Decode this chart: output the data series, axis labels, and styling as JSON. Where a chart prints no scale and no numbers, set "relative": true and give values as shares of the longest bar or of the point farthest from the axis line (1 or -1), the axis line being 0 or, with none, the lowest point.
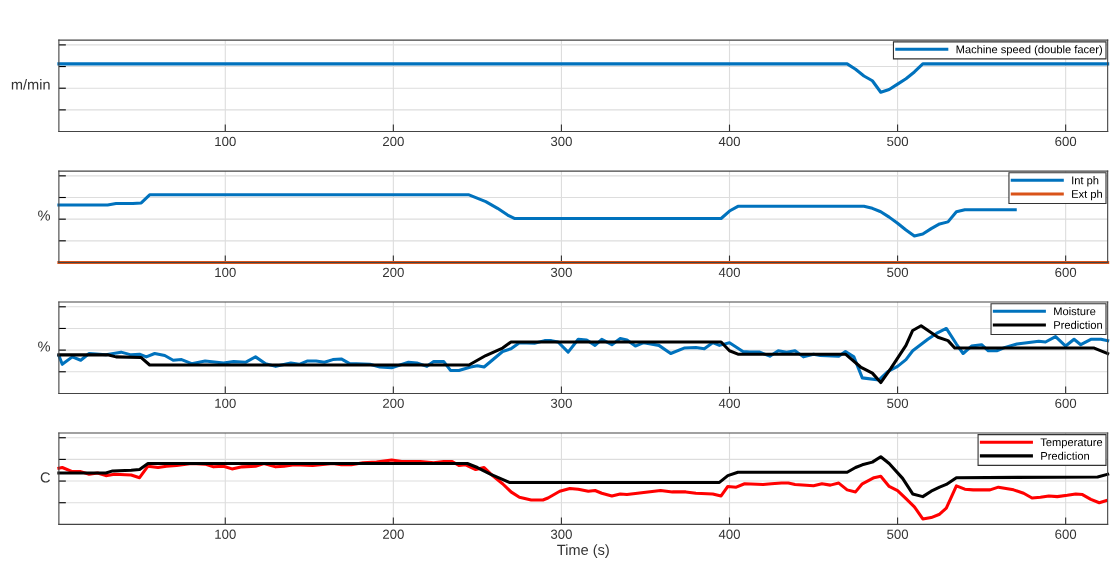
{
  "chart_data": [
    {
      "type": "line",
      "relative": true,
      "ylabel": "m/min",
      "xlim": [
        1,
        625
      ],
      "xticks": [
        100,
        200,
        300,
        400,
        500,
        600
      ],
      "tick_labels": "x",
      "grid": true,
      "legend": "top right",
      "line_style": "solid",
      "marker": "none",
      "series": [
        {
          "name": "Machine speed (double facer)",
          "color": "#0072bd",
          "x": [
            1,
            470,
            475,
            480,
            485,
            490,
            495,
            500,
            505,
            510,
            515,
            625
          ],
          "values": [
            1,
            1,
            0.92,
            0.82,
            0.75,
            0.58,
            0.62,
            0.7,
            0.78,
            0.88,
            1,
            1
          ]
        }
      ]
    },
    {
      "type": "line",
      "relative": true,
      "ylabel": "%",
      "xlim": [
        1,
        625
      ],
      "xticks": [
        100,
        200,
        300,
        400,
        500,
        600
      ],
      "tick_labels": "x",
      "grid": true,
      "legend": "top right",
      "line_style": "solid",
      "marker": "none",
      "series": [
        {
          "name": "Int ph",
          "color": "#0072bd",
          "x": [
            1,
            30,
            35,
            45,
            50,
            55,
            245,
            255,
            262,
            268,
            272,
            395,
            400,
            405,
            480,
            485,
            490,
            495,
            500,
            505,
            510,
            515,
            520,
            525,
            530,
            535,
            540,
            570
          ],
          "values": [
            0.85,
            0.85,
            0.87,
            0.87,
            0.88,
            1,
            1,
            0.9,
            0.8,
            0.7,
            0.65,
            0.65,
            0.76,
            0.83,
            0.83,
            0.8,
            0.75,
            0.67,
            0.58,
            0.48,
            0.39,
            0.42,
            0.5,
            0.57,
            0.6,
            0.75,
            0.78,
            0.78
          ]
        },
        {
          "name": "Ext ph",
          "color": "#d95319",
          "x": [
            1,
            625
          ],
          "values": [
            0,
            0
          ]
        }
      ]
    },
    {
      "type": "line",
      "relative": true,
      "ylabel": "%",
      "xlim": [
        1,
        625
      ],
      "xticks": [
        100,
        200,
        300,
        400,
        500,
        600
      ],
      "tick_labels": "x",
      "grid": true,
      "legend": "top right",
      "line_style": "solid",
      "marker": "none",
      "series": [
        {
          "name": "Moisture",
          "color": "#0072bd",
          "x": [
            1,
            3,
            9,
            14,
            19,
            29,
            38,
            44,
            49,
            53,
            58,
            64,
            69,
            74,
            80,
            88,
            99,
            105,
            112,
            118,
            124,
            130,
            139,
            144,
            149,
            154,
            159,
            164,
            169,
            174,
            186,
            192,
            199,
            209,
            214,
            220,
            224,
            230,
            234,
            239,
            246,
            250,
            254,
            265,
            270,
            275,
            284,
            290,
            294,
            298,
            304,
            310,
            315,
            320,
            324,
            330,
            335,
            339,
            344,
            349,
            358,
            365,
            373,
            380,
            385,
            390,
            394,
            400,
            408,
            412,
            418,
            424,
            429,
            434,
            439,
            444,
            450,
            454,
            465,
            469,
            474,
            479,
            489,
            494,
            500,
            505,
            509,
            518,
            524,
            529,
            535,
            539,
            544,
            550,
            554,
            559,
            564,
            571,
            577,
            584,
            588,
            594,
            600,
            605,
            609,
            615,
            621,
            625
          ],
          "values": [
            0.56,
            0.43,
            0.54,
            0.49,
            0.59,
            0.57,
            0.61,
            0.57,
            0.58,
            0.54,
            0.59,
            0.56,
            0.49,
            0.5,
            0.44,
            0.48,
            0.45,
            0.47,
            0.46,
            0.54,
            0.44,
            0.4,
            0.45,
            0.43,
            0.48,
            0.48,
            0.46,
            0.5,
            0.51,
            0.44,
            0.43,
            0.39,
            0.38,
            0.46,
            0.45,
            0.4,
            0.47,
            0.47,
            0.34,
            0.34,
            0.39,
            0.41,
            0.39,
            0.62,
            0.66,
            0.75,
            0.74,
            0.78,
            0.78,
            0.76,
            0.61,
            0.8,
            0.79,
            0.71,
            0.8,
            0.72,
            0.81,
            0.79,
            0.7,
            0.75,
            0.71,
            0.59,
            0.67,
            0.68,
            0.66,
            0.75,
            0.71,
            0.75,
            0.62,
            0.61,
            0.61,
            0.55,
            0.63,
            0.61,
            0.63,
            0.54,
            0.58,
            0.56,
            0.55,
            0.62,
            0.54,
            0.23,
            0.2,
            0.32,
            0.4,
            0.5,
            0.63,
            0.8,
            0.9,
            0.96,
            0.73,
            0.59,
            0.7,
            0.72,
            0.63,
            0.63,
            0.68,
            0.73,
            0.75,
            0.77,
            0.76,
            0.84,
            0.7,
            0.8,
            0.72,
            0.8,
            0.8,
            0.78
          ]
        },
        {
          "name": "Prediction",
          "color": "#000000",
          "x": [
            1,
            30,
            35,
            50,
            55,
            245,
            255,
            265,
            270,
            395,
            400,
            405,
            469,
            478,
            485,
            490,
            496,
            505,
            509,
            514,
            524,
            530,
            534,
            617,
            625
          ],
          "values": [
            0.57,
            0.57,
            0.54,
            0.53,
            0.42,
            0.42,
            0.56,
            0.67,
            0.76,
            0.76,
            0.63,
            0.58,
            0.58,
            0.39,
            0.3,
            0.16,
            0.37,
            0.71,
            0.93,
            1,
            0.83,
            0.78,
            0.67,
            0.67,
            0.59
          ]
        }
      ]
    },
    {
      "type": "line",
      "relative": true,
      "ylabel": "C",
      "xlabel": "Time (s)",
      "xlim": [
        1,
        625
      ],
      "xticks": [
        100,
        200,
        300,
        400,
        500,
        600
      ],
      "tick_labels": "x",
      "grid": true,
      "legend": "top right",
      "line_style": "solid",
      "marker": "none",
      "series": [
        {
          "name": "Temperature",
          "color": "#ff0000",
          "x": [
            1,
            3,
            9,
            14,
            19,
            24,
            29,
            34,
            44,
            49,
            54,
            60,
            65,
            71,
            80,
            88,
            93,
            99,
            104,
            110,
            118,
            123,
            130,
            135,
            141,
            152,
            164,
            169,
            175,
            182,
            190,
            199,
            205,
            216,
            224,
            230,
            235,
            239,
            243,
            249,
            254,
            259,
            265,
            270,
            275,
            282,
            289,
            292,
            299,
            305,
            310,
            316,
            320,
            324,
            330,
            335,
            339,
            349,
            359,
            366,
            374,
            380,
            390,
            395,
            399,
            404,
            409,
            420,
            425,
            431,
            435,
            439,
            450,
            455,
            460,
            465,
            470,
            475,
            479,
            486,
            490,
            495,
            500,
            505,
            510,
            515,
            520,
            525,
            529,
            535,
            540,
            545,
            555,
            560,
            569,
            575,
            580,
            585,
            590,
            595,
            601,
            606,
            610,
            615,
            620,
            624
          ],
          "values": [
            0.83,
            0.84,
            0.78,
            0.78,
            0.74,
            0.76,
            0.72,
            0.74,
            0.73,
            0.69,
            0.86,
            0.84,
            0.86,
            0.87,
            0.9,
            0.89,
            0.85,
            0.86,
            0.82,
            0.85,
            0.86,
            0.9,
            0.85,
            0.86,
            0.88,
            0.87,
            0.9,
            0.88,
            0.88,
            0.91,
            0.92,
            0.95,
            0.93,
            0.93,
            0.91,
            0.93,
            0.93,
            0.87,
            0.88,
            0.81,
            0.84,
            0.72,
            0.6,
            0.48,
            0.4,
            0.36,
            0.36,
            0.39,
            0.49,
            0.53,
            0.52,
            0.49,
            0.5,
            0.46,
            0.42,
            0.45,
            0.44,
            0.47,
            0.5,
            0.48,
            0.48,
            0.46,
            0.45,
            0.42,
            0.56,
            0.55,
            0.6,
            0.59,
            0.6,
            0.61,
            0.61,
            0.59,
            0.57,
            0.6,
            0.58,
            0.61,
            0.51,
            0.48,
            0.6,
            0.69,
            0.71,
            0.56,
            0.5,
            0.38,
            0.26,
            0.08,
            0.1,
            0.15,
            0.24,
            0.57,
            0.52,
            0.51,
            0.51,
            0.55,
            0.51,
            0.46,
            0.39,
            0.4,
            0.42,
            0.41,
            0.43,
            0.45,
            0.44,
            0.37,
            0.32,
            0.35
          ]
        },
        {
          "name": "Prediction",
          "color": "#000000",
          "x": [
            1,
            29,
            33,
            44,
            49,
            54,
            244,
            250,
            258,
            269,
            394,
            399,
            405,
            470,
            475,
            479,
            485,
            490,
            495,
            503,
            509,
            515,
            520,
            525,
            529,
            535,
            619,
            625
          ],
          "values": [
            0.76,
            0.76,
            0.79,
            0.8,
            0.81,
            0.9,
            0.9,
            0.84,
            0.74,
            0.62,
            0.62,
            0.72,
            0.77,
            0.77,
            0.84,
            0.88,
            0.92,
            1,
            0.9,
            0.68,
            0.45,
            0.41,
            0.49,
            0.55,
            0.59,
            0.69,
            0.7,
            0.74
          ]
        }
      ]
    }
  ]
}
